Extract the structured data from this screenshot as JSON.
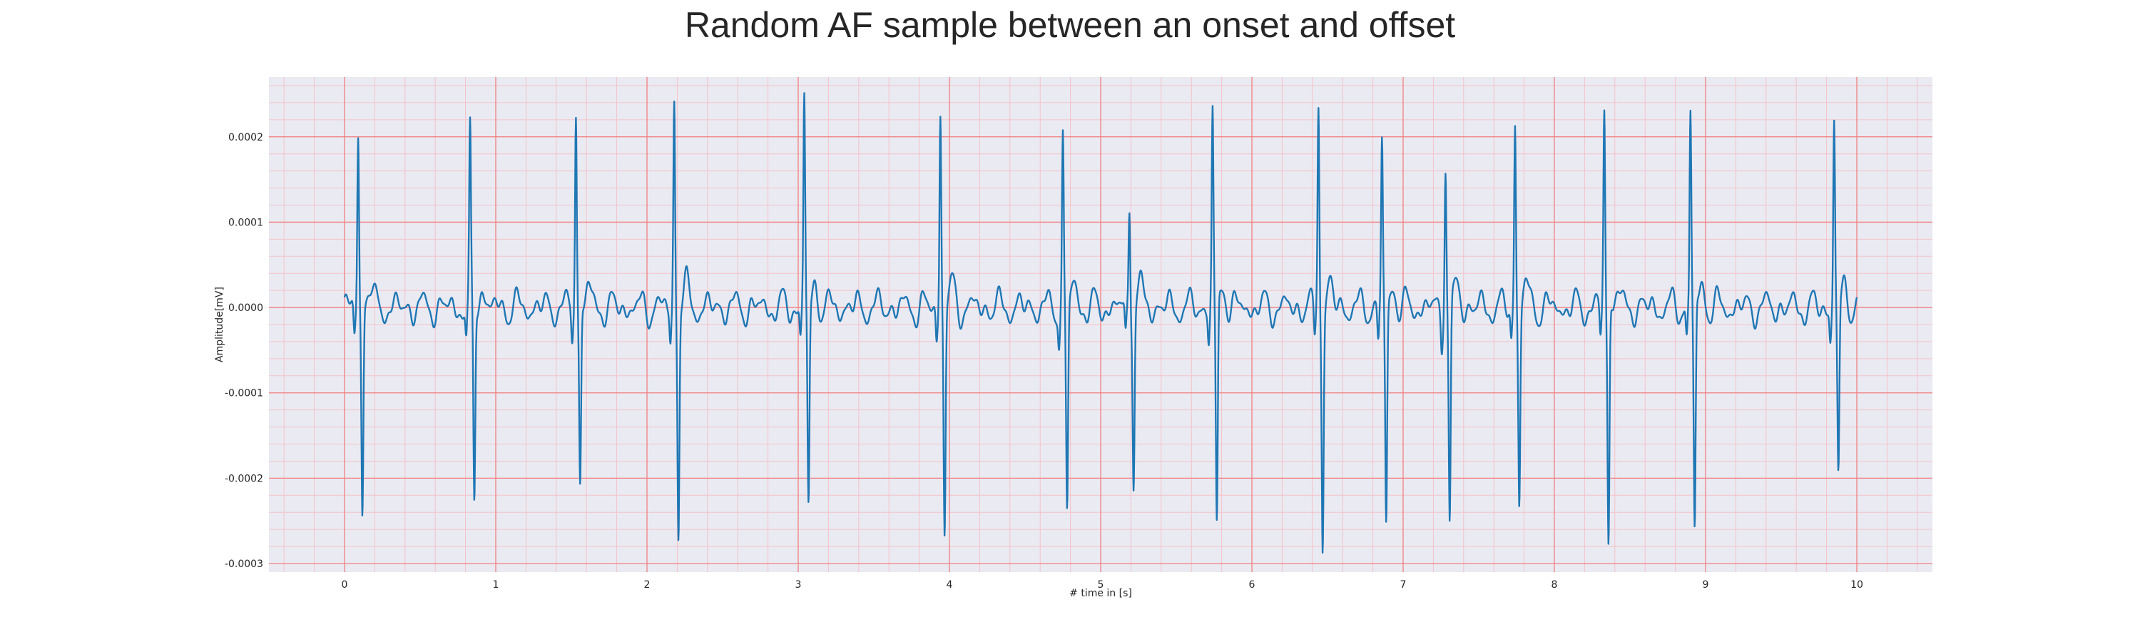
{
  "chart_data": {
    "type": "line",
    "title": "Random AF sample between an onset and offset",
    "xlabel": "# time in [s]",
    "ylabel": "Amplitude[mV]",
    "xlim": [
      -0.5,
      10.5
    ],
    "ylim": [
      -0.00031,
      0.00027
    ],
    "x_ticks": [
      0,
      1,
      2,
      3,
      4,
      5,
      6,
      7,
      8,
      9,
      10
    ],
    "x_tick_labels": [
      "0",
      "1",
      "2",
      "3",
      "4",
      "5",
      "6",
      "7",
      "8",
      "9",
      "10"
    ],
    "y_ticks": [
      0.0002,
      0.0001,
      0.0,
      -0.0001,
      -0.0002,
      -0.0003
    ],
    "y_tick_labels": [
      "0.0002",
      "0.0001",
      "0.0000",
      "-0.0001",
      "-0.0002",
      "-0.0003"
    ],
    "grid": true,
    "minor_grid": true,
    "colors": {
      "background": "#eaeaf2",
      "major_grid": "#f08080",
      "minor_grid": "#f4c2c8",
      "series": "#1f77b4"
    },
    "x_range": [
      0,
      10
    ],
    "r_peaks": [
      {
        "t": 0.09,
        "peak": 0.000205,
        "trough": -0.00024
      },
      {
        "t": 0.83,
        "peak": 0.000204,
        "trough": -0.000238
      },
      {
        "t": 1.53,
        "peak": 0.000235,
        "trough": -0.000212
      },
      {
        "t": 2.18,
        "peak": 0.000243,
        "trough": -0.000265
      },
      {
        "t": 3.04,
        "peak": 0.000246,
        "trough": -0.000235
      },
      {
        "t": 3.94,
        "peak": 0.000232,
        "trough": -0.000265
      },
      {
        "t": 4.75,
        "peak": 0.000198,
        "trough": -0.000235
      },
      {
        "t": 5.19,
        "peak": 0.000126,
        "trough": -0.0002
      },
      {
        "t": 5.74,
        "peak": 0.000225,
        "trough": -0.00026
      },
      {
        "t": 6.44,
        "peak": 0.000238,
        "trough": -0.000268
      },
      {
        "t": 6.86,
        "peak": 0.00019,
        "trough": -0.000257
      },
      {
        "t": 7.28,
        "peak": 0.000171,
        "trough": -0.000257
      },
      {
        "t": 7.74,
        "peak": 0.000218,
        "trough": -0.000225
      },
      {
        "t": 8.33,
        "peak": 0.000235,
        "trough": -0.000283
      },
      {
        "t": 8.9,
        "peak": 0.000232,
        "trough": -0.00027
      },
      {
        "t": 9.85,
        "peak": 0.00022,
        "trough": -0.0002
      }
    ]
  }
}
